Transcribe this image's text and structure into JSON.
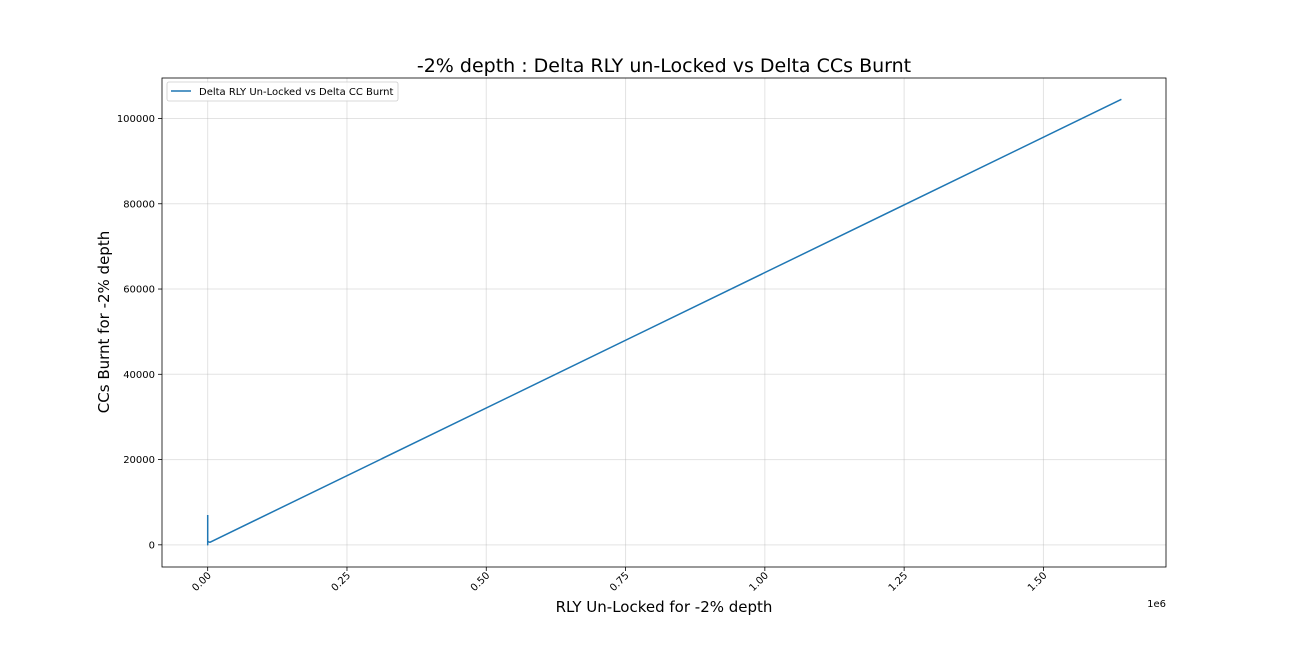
{
  "chart_data": {
    "type": "line",
    "title": "-2% depth : Delta RLY un-Locked vs Delta CCs Burnt",
    "xlabel": "RLY Un-Locked for -2% depth",
    "ylabel": "CCs Burnt for -2% depth",
    "x_offset_label": "1e6",
    "xlim": [
      -0.082,
      1.72
    ],
    "ylim": [
      -5200,
      109500
    ],
    "x_ticks": [
      0.0,
      0.25,
      0.5,
      0.75,
      1.0,
      1.25,
      1.5
    ],
    "x_tick_labels": [
      "0.00",
      "0.25",
      "0.50",
      "0.75",
      "1.00",
      "1.25",
      "1.50"
    ],
    "y_ticks": [
      0,
      20000,
      40000,
      60000,
      80000,
      100000
    ],
    "y_tick_labels": [
      "0",
      "20000",
      "40000",
      "60000",
      "80000",
      "100000"
    ],
    "grid": true,
    "legend_position": "upper left",
    "series": [
      {
        "name": "Delta RLY Un-Locked vs Delta CC Burnt",
        "color": "#1f77b4",
        "x": [
          0.0,
          0.0,
          0.0,
          0.0,
          0.004,
          1.64
        ],
        "y": [
          7000,
          0,
          5000,
          800,
          600,
          104500
        ]
      }
    ]
  }
}
